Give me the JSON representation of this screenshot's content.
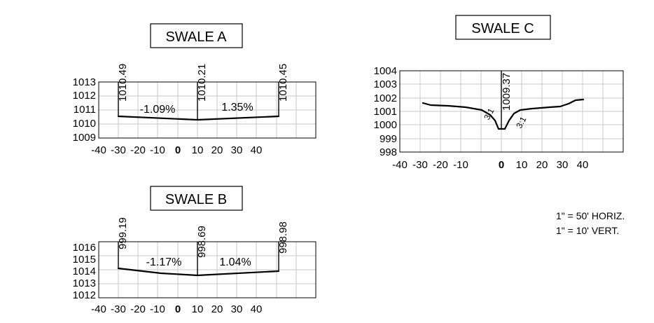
{
  "swale_a": {
    "title": "SWALE A",
    "x_ticks": [
      "-40",
      "-30",
      "-20",
      "-10",
      "0",
      "10",
      "20",
      "30",
      "40"
    ],
    "y_ticks": [
      "1013",
      "1012",
      "1011",
      "1010",
      "1009"
    ],
    "elev_left": "1010.49",
    "elev_center": "1010.21",
    "elev_right": "1010.45",
    "slope_left": "-1.09%",
    "slope_right": "1.35%"
  },
  "swale_b": {
    "title": "SWALE B",
    "x_ticks": [
      "-40",
      "-30",
      "-20",
      "-10",
      "0",
      "10",
      "20",
      "30",
      "40"
    ],
    "y_ticks": [
      "1016",
      "1015",
      "1014",
      "1013",
      "1012"
    ],
    "elev_left": "999.19",
    "elev_center": "998.69",
    "elev_right": "998.98",
    "slope_left": "-1.17%",
    "slope_right": "1.04%"
  },
  "swale_c": {
    "title": "SWALE C",
    "x_ticks": [
      "-40",
      "-30",
      "-20",
      "-10",
      "0",
      "10",
      "20",
      "30",
      "40"
    ],
    "y_ticks": [
      "1004",
      "1003",
      "1002",
      "1001",
      "1000",
      "999",
      "998"
    ],
    "elev_center": "1009.37",
    "side_slope_left": "3:1",
    "side_slope_right": "3:1"
  },
  "scale": {
    "horizontal": "1\" = 50' HORIZ.",
    "vertical": "1\" = 10' VERT."
  }
}
